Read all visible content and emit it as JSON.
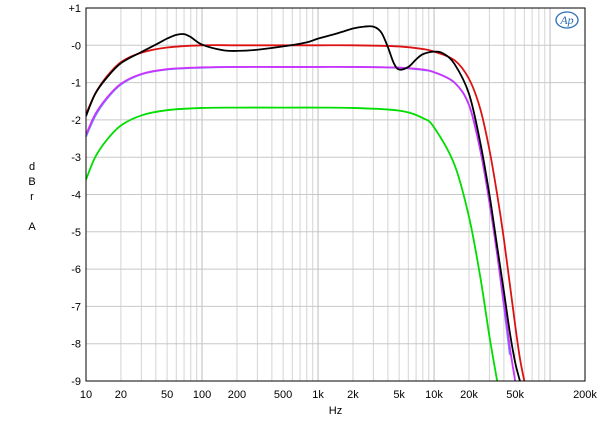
{
  "chart_data": {
    "type": "line",
    "title": "",
    "xlabel": "Hz",
    "ylabel": [
      "d",
      "B",
      "r",
      "",
      "A"
    ],
    "x_scale": "log",
    "xlim": [
      10,
      200000
    ],
    "ylim": [
      -9,
      1
    ],
    "x_ticks": [
      {
        "value": 10,
        "label": "10"
      },
      {
        "value": 20,
        "label": "20"
      },
      {
        "value": 50,
        "label": "50"
      },
      {
        "value": 100,
        "label": "100"
      },
      {
        "value": 200,
        "label": "200"
      },
      {
        "value": 500,
        "label": "500"
      },
      {
        "value": 1000,
        "label": "1k"
      },
      {
        "value": 2000,
        "label": "2k"
      },
      {
        "value": 5000,
        "label": "5k"
      },
      {
        "value": 10000,
        "label": "10k"
      },
      {
        "value": 20000,
        "label": "20k"
      },
      {
        "value": 50000,
        "label": "50k"
      },
      {
        "value": 200000,
        "label": "200k"
      }
    ],
    "y_ticks": [
      {
        "value": 1,
        "label": "+1"
      },
      {
        "value": 0,
        "label": "-0"
      },
      {
        "value": -1,
        "label": "-1"
      },
      {
        "value": -2,
        "label": "-2"
      },
      {
        "value": -3,
        "label": "-3"
      },
      {
        "value": -4,
        "label": "-4"
      },
      {
        "value": -5,
        "label": "-5"
      },
      {
        "value": -6,
        "label": "-6"
      },
      {
        "value": -7,
        "label": "-7"
      },
      {
        "value": -8,
        "label": "-8"
      },
      {
        "value": -9,
        "label": "-9"
      }
    ],
    "grid": true,
    "series": [
      {
        "color": "#00dd00",
        "x": [
          10,
          12,
          15,
          20,
          30,
          50,
          100,
          200,
          500,
          1000,
          2000,
          5000,
          8000,
          10000,
          15000,
          20000,
          25000,
          30000,
          35000
        ],
        "y": [
          -3.6,
          -3.0,
          -2.55,
          -2.15,
          -1.88,
          -1.74,
          -1.68,
          -1.67,
          -1.67,
          -1.67,
          -1.68,
          -1.75,
          -1.95,
          -2.2,
          -3.2,
          -4.6,
          -6.2,
          -7.8,
          -9.0
        ]
      },
      {
        "color": "#6688ff",
        "x": [
          10,
          12,
          15,
          20,
          30,
          50,
          100,
          200,
          500,
          1000,
          2000,
          5000,
          8000,
          10000,
          15000,
          20000,
          25000,
          30000,
          35000,
          40000,
          45000
        ],
        "y": [
          -2.45,
          -1.9,
          -1.45,
          -1.05,
          -0.78,
          -0.65,
          -0.6,
          -0.58,
          -0.58,
          -0.58,
          -0.58,
          -0.6,
          -0.66,
          -0.72,
          -1.0,
          -1.6,
          -2.8,
          -4.2,
          -5.6,
          -7.0,
          -8.3
        ]
      },
      {
        "color": "#cc33ff",
        "x": [
          10,
          12,
          15,
          20,
          30,
          50,
          100,
          200,
          500,
          1000,
          2000,
          5000,
          8000,
          10000,
          15000,
          20000,
          25000,
          30000,
          35000,
          40000,
          45000,
          50000
        ],
        "y": [
          -2.4,
          -1.85,
          -1.42,
          -1.03,
          -0.77,
          -0.64,
          -0.59,
          -0.58,
          -0.58,
          -0.58,
          -0.58,
          -0.6,
          -0.65,
          -0.72,
          -1.0,
          -1.6,
          -2.8,
          -4.2,
          -5.6,
          -6.9,
          -8.1,
          -9.0
        ]
      },
      {
        "color": "#dd1111",
        "x": [
          10,
          12,
          15,
          20,
          30,
          50,
          100,
          200,
          500,
          1000,
          2000,
          5000,
          8000,
          10000,
          15000,
          20000,
          25000,
          30000,
          35000,
          40000,
          50000,
          55000,
          60000
        ],
        "y": [
          -1.85,
          -1.3,
          -0.85,
          -0.45,
          -0.2,
          -0.06,
          0.0,
          0.0,
          0.0,
          0.0,
          0.0,
          -0.03,
          -0.1,
          -0.17,
          -0.4,
          -0.9,
          -1.7,
          -2.8,
          -4.0,
          -5.2,
          -7.5,
          -8.4,
          -9.0
        ]
      },
      {
        "color": "#000000",
        "x": [
          10,
          12,
          15,
          20,
          30,
          40,
          50,
          60,
          70,
          80,
          100,
          150,
          200,
          300,
          500,
          800,
          1000,
          1500,
          2000,
          2500,
          3000,
          3500,
          4000,
          4500,
          5000,
          6000,
          7000,
          8000,
          10000,
          12000,
          15000,
          20000,
          25000,
          30000,
          35000,
          40000,
          45000,
          50000,
          55000
        ],
        "y": [
          -1.9,
          -1.3,
          -0.88,
          -0.48,
          -0.18,
          0.02,
          0.18,
          0.28,
          0.3,
          0.22,
          0.02,
          -0.13,
          -0.15,
          -0.12,
          -0.03,
          0.08,
          0.18,
          0.33,
          0.45,
          0.5,
          0.5,
          0.35,
          -0.05,
          -0.48,
          -0.65,
          -0.58,
          -0.38,
          -0.24,
          -0.17,
          -0.22,
          -0.5,
          -1.3,
          -2.6,
          -4.0,
          -5.4,
          -6.6,
          -7.7,
          -8.5,
          -9.0
        ]
      }
    ],
    "logo": "Ap"
  }
}
